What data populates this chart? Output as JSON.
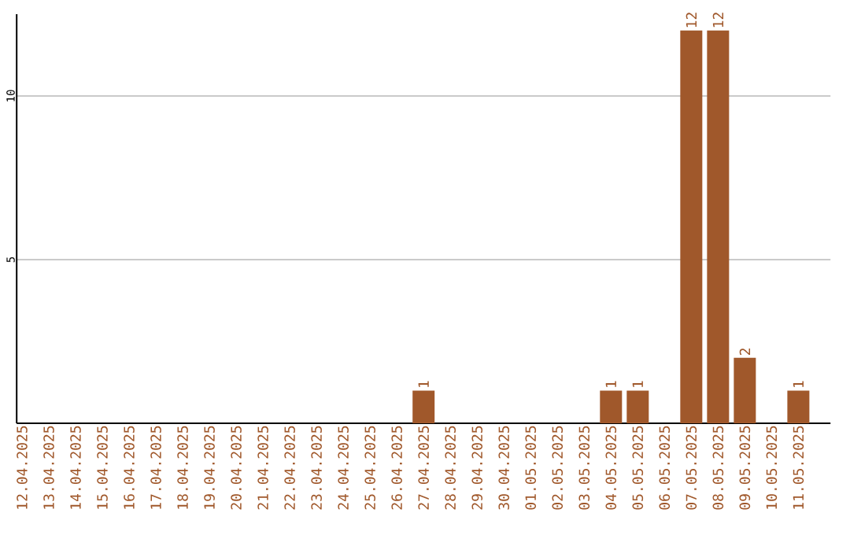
{
  "chart_data": {
    "type": "bar",
    "categories": [
      "12.04.2025",
      "13.04.2025",
      "14.04.2025",
      "15.04.2025",
      "16.04.2025",
      "17.04.2025",
      "18.04.2025",
      "19.04.2025",
      "20.04.2025",
      "21.04.2025",
      "22.04.2025",
      "23.04.2025",
      "24.04.2025",
      "25.04.2025",
      "26.04.2025",
      "27.04.2025",
      "28.04.2025",
      "29.04.2025",
      "30.04.2025",
      "01.05.2025",
      "02.05.2025",
      "03.05.2025",
      "04.05.2025",
      "05.05.2025",
      "06.05.2025",
      "07.05.2025",
      "08.05.2025",
      "09.05.2025",
      "10.05.2025",
      "11.05.2025"
    ],
    "values": [
      0,
      0,
      0,
      0,
      0,
      0,
      0,
      0,
      0,
      0,
      0,
      0,
      0,
      0,
      0,
      1,
      0,
      0,
      0,
      0,
      0,
      0,
      1,
      1,
      0,
      12,
      12,
      2,
      0,
      1
    ],
    "value_labels": [
      null,
      null,
      null,
      null,
      null,
      null,
      null,
      null,
      null,
      null,
      null,
      null,
      null,
      null,
      null,
      "1",
      null,
      null,
      null,
      null,
      null,
      null,
      "1",
      "1",
      null,
      "12",
      "12",
      "2",
      null,
      "1"
    ],
    "color": "#a0582b",
    "ylim": [
      0,
      12.5
    ],
    "yticks": [
      5,
      10
    ],
    "grid": "y"
  }
}
